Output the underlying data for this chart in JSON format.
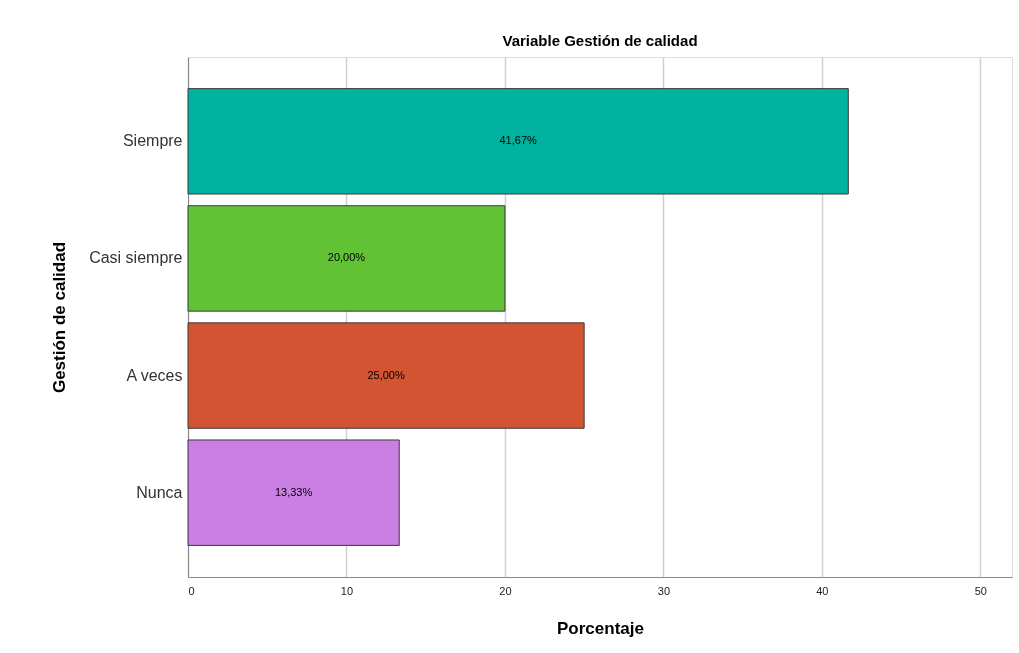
{
  "chart_data": {
    "type": "bar",
    "orientation": "horizontal",
    "title": "Variable Gestión de calidad",
    "xlabel": "Porcentaje",
    "ylabel": "Gestión de calidad",
    "categories": [
      "Siempre",
      "Casi siempre",
      "A veces",
      "Nunca"
    ],
    "values": [
      41.67,
      20.0,
      25.0,
      13.33
    ],
    "colors": [
      "#00b2a0",
      "#62c236",
      "#d35432",
      "#cc7fe3"
    ],
    "value_labels": [
      "41,67%",
      "20,00%",
      "25,00%",
      "13,33%"
    ],
    "xlim": [
      0,
      52
    ],
    "xticks": [
      0,
      10,
      20,
      30,
      40,
      50
    ],
    "grid": "x",
    "legend": false
  }
}
